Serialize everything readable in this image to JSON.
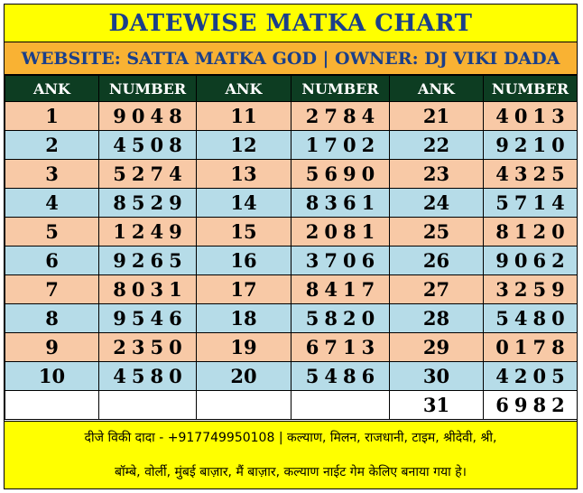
{
  "header": {
    "title": "DATEWISE MATKA CHART",
    "subtitle": "WEBSITE: SATTA MATKA GOD | OWNER: DJ VIKI DADA"
  },
  "table": {
    "headers": [
      "ANK",
      "NUMBER",
      "ANK",
      "NUMBER",
      "ANK",
      "NUMBER"
    ],
    "rows": [
      {
        "style": "peach",
        "cells": [
          "1",
          "9048",
          "11",
          "2784",
          "21",
          "4013"
        ]
      },
      {
        "style": "blue",
        "cells": [
          "2",
          "4508",
          "12",
          "1702",
          "22",
          "9210"
        ]
      },
      {
        "style": "peach",
        "cells": [
          "3",
          "5274",
          "13",
          "5690",
          "23",
          "4325"
        ]
      },
      {
        "style": "blue",
        "cells": [
          "4",
          "8529",
          "14",
          "8361",
          "24",
          "5714"
        ]
      },
      {
        "style": "peach",
        "cells": [
          "5",
          "1249",
          "15",
          "2081",
          "25",
          "8120"
        ]
      },
      {
        "style": "blue",
        "cells": [
          "6",
          "9265",
          "16",
          "3706",
          "26",
          "9062"
        ]
      },
      {
        "style": "peach",
        "cells": [
          "7",
          "8031",
          "17",
          "8417",
          "27",
          "3259"
        ]
      },
      {
        "style": "blue",
        "cells": [
          "8",
          "9546",
          "18",
          "5820",
          "28",
          "5480"
        ]
      },
      {
        "style": "peach",
        "cells": [
          "9",
          "2350",
          "19",
          "6713",
          "29",
          "0178"
        ]
      },
      {
        "style": "blue",
        "cells": [
          "10",
          "4580",
          "20",
          "5486",
          "30",
          "4205"
        ]
      },
      {
        "style": "white",
        "cells": [
          "",
          "",
          "",
          "",
          "31",
          "6982"
        ]
      }
    ]
  },
  "footer": {
    "line1": "दीजे विकी दादा - +917749950108 | कल्याण, मिलन, राजधानी, टाइम, श्रीदेवी, श्री,",
    "line2": "बॉम्बे, वोर्ली, मुंबई बाज़ार, मैं बाज़ार, कल्याण नाईट गेम केलिए बनाया गया हे।"
  },
  "colors": {
    "title_bg": "#ffff00",
    "title_text": "#1a3f8a",
    "subtitle_bg": "#f9b233",
    "header_bg": "#0d3d22",
    "row_peach": "#f8c9a6",
    "row_blue": "#b6dce8"
  }
}
